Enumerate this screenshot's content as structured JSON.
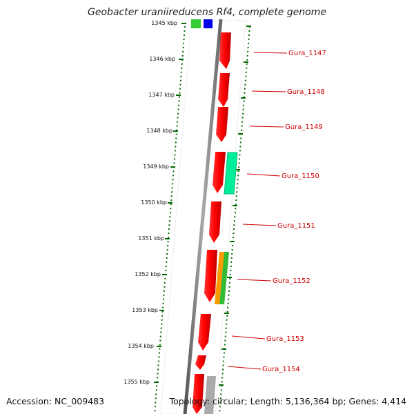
{
  "title": "Geobacter uraniireducens Rf4, complete genome",
  "accession": "Accession: NC_009483",
  "summary": "Topology: circular; Length: 5,136,364 bp; Genes: 4,414",
  "scale_labels": [
    "1345 kbp",
    "1346 kbp",
    "1347 kbp",
    "1348 kbp",
    "1349 kbp",
    "1350 kbp",
    "1351 kbp",
    "1352 kbp",
    "1353 kbp",
    "1354 kbp",
    "1355 kbp"
  ],
  "genes": [
    {
      "name": "Gura_1147"
    },
    {
      "name": "Gura_1148"
    },
    {
      "name": "Gura_1149"
    },
    {
      "name": "Gura_1150"
    },
    {
      "name": "Gura_1151"
    },
    {
      "name": "Gura_1152"
    },
    {
      "name": "Gura_1153"
    },
    {
      "name": "Gura_1154"
    }
  ],
  "colors": {
    "cds": "#ff0000",
    "rna": "#00ee99",
    "orange_feature": "#ff9900",
    "green_feature": "#33bb33",
    "blue_feature": "#0000ee",
    "pseudo": "#aaaaaa",
    "backbone": "#808080",
    "ruler": "#006600",
    "label": "#cc0000"
  }
}
